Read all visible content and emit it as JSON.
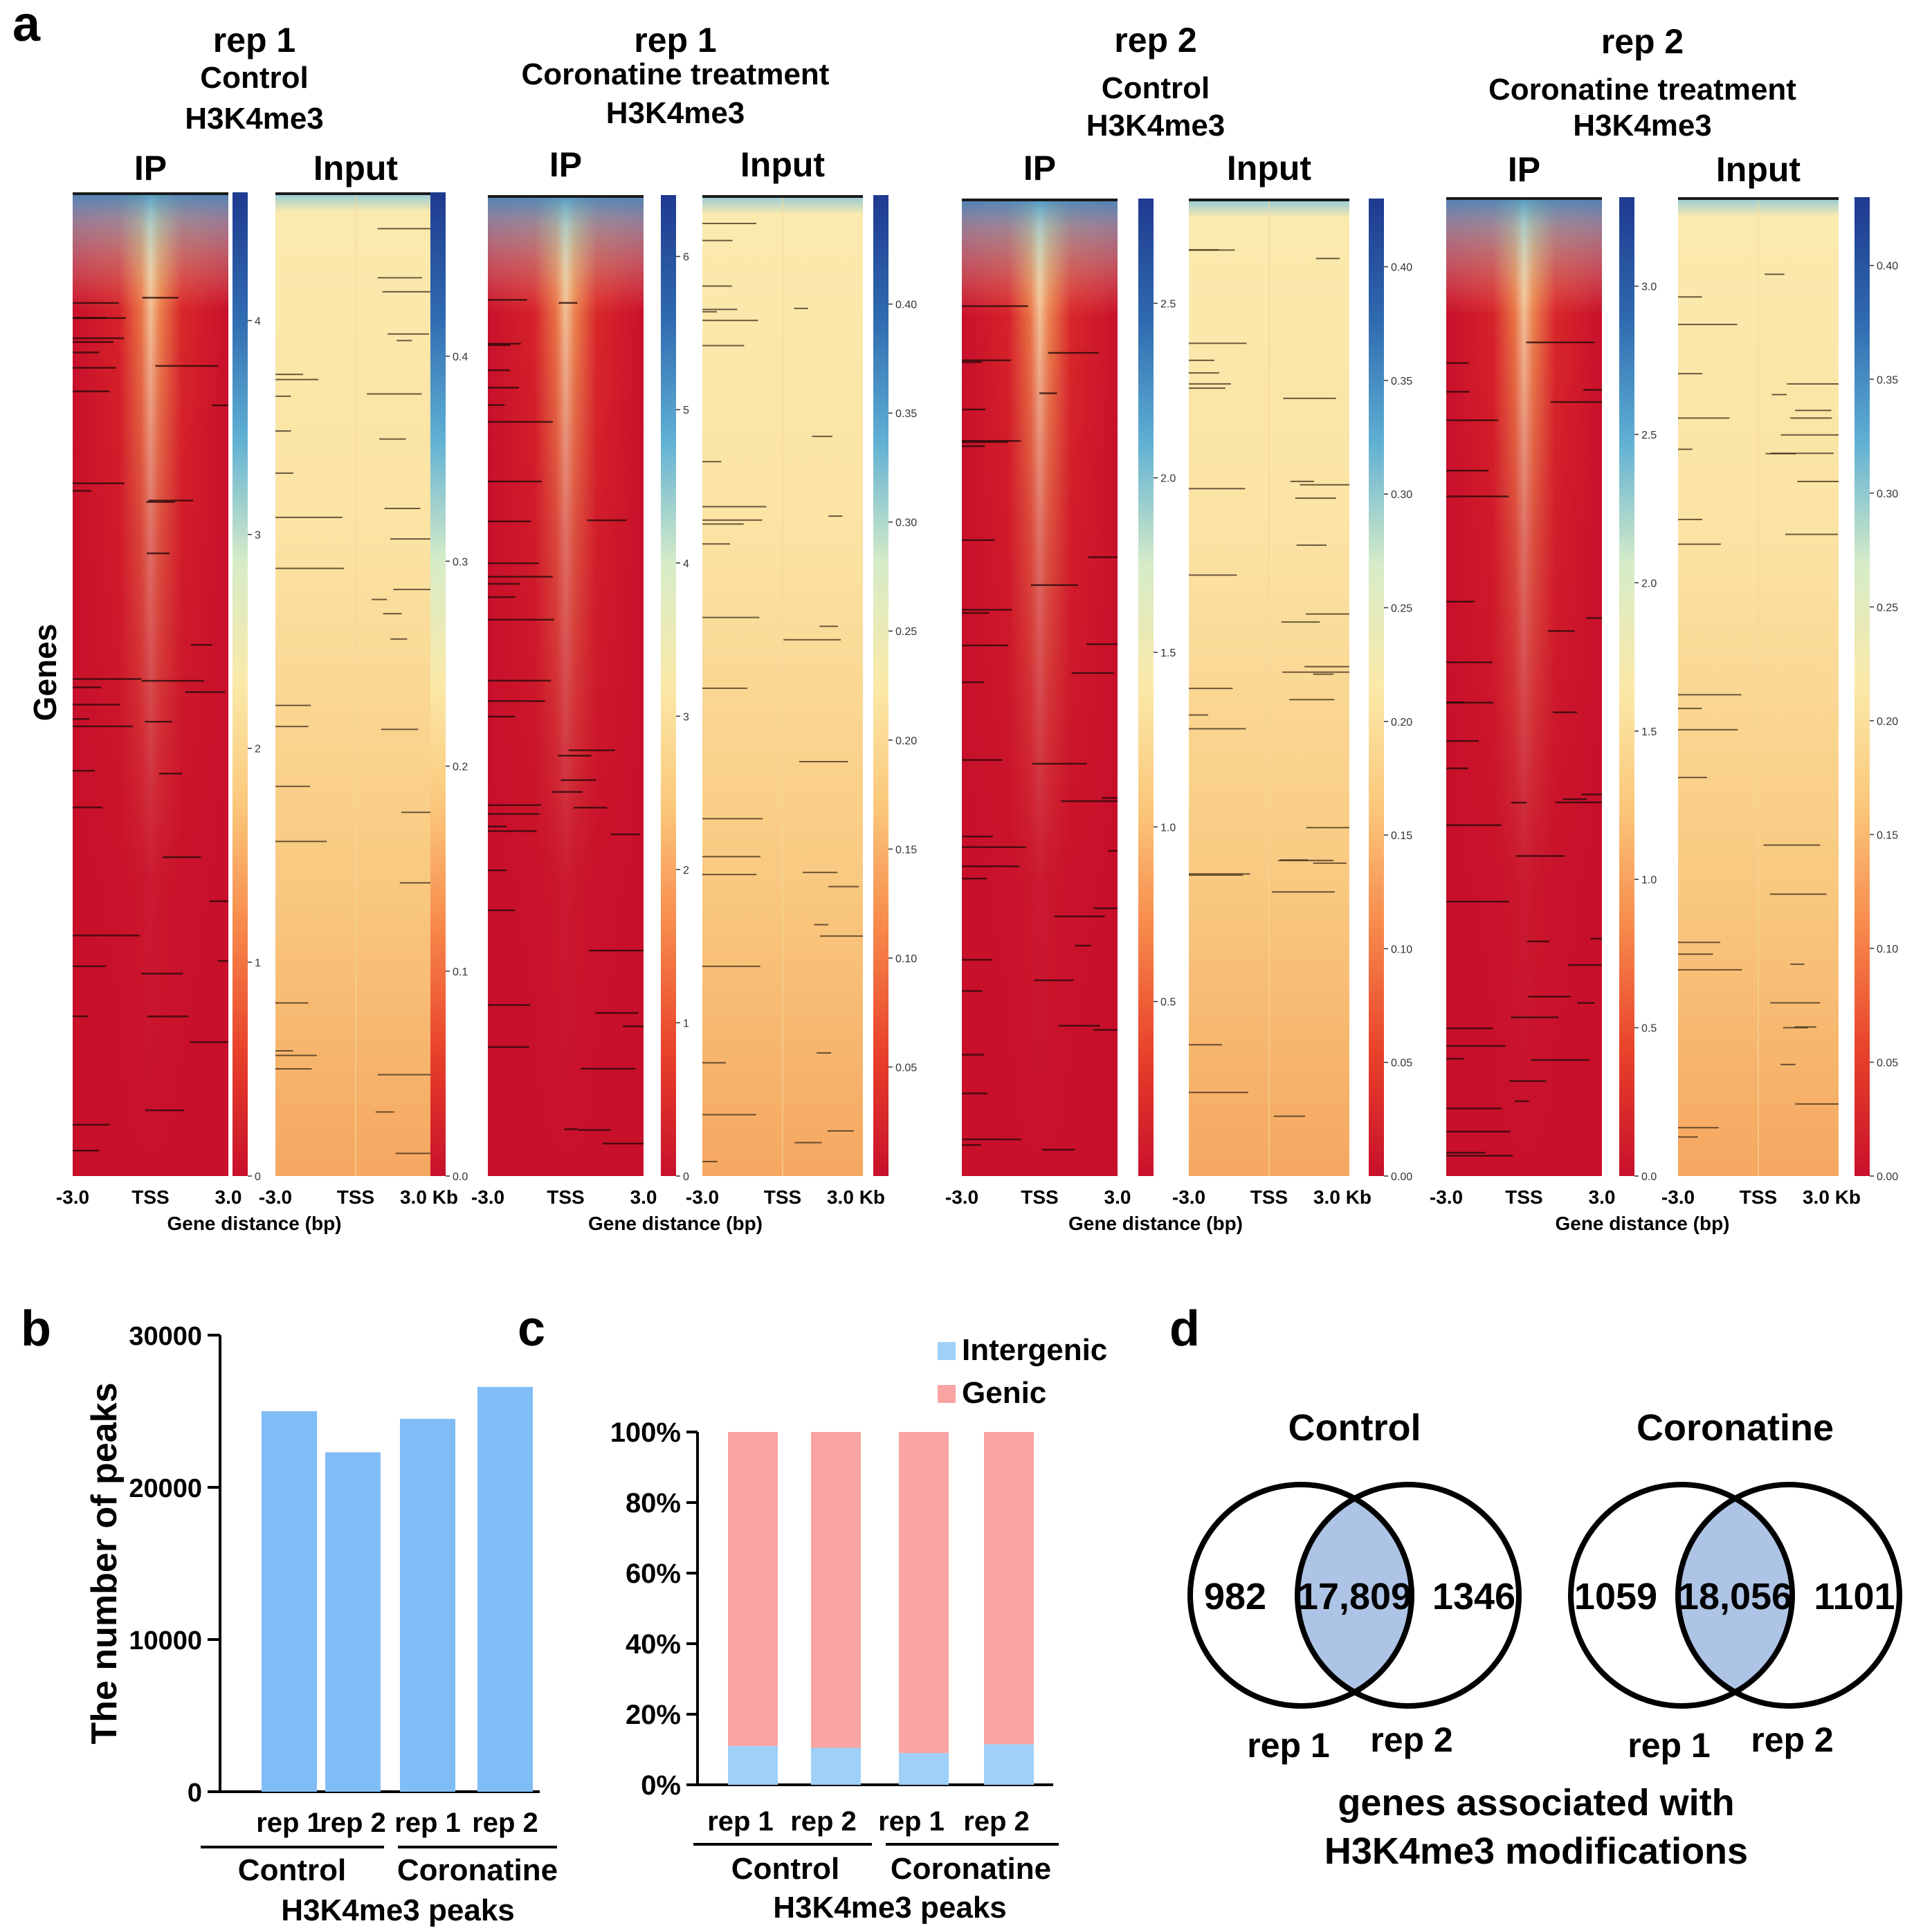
{
  "panel_labels": {
    "a": "a",
    "b": "b",
    "c": "c",
    "d": "d"
  },
  "heatmap_panel": {
    "y_label": "Genes",
    "x_axis_title": "Gene distance (bp)",
    "x_ticks_ip": [
      "-3.0",
      "TSS",
      "3.0"
    ],
    "x_ticks_input": [
      "-3.0",
      "TSS",
      "3.0 Kb"
    ],
    "col_ip": "IP",
    "col_input": "Input",
    "colormap": [
      "#c8102b",
      "#e8412a",
      "#f7874a",
      "#fbc77a",
      "#fbe9a8",
      "#d6ecc8",
      "#5fb0d4",
      "#2f6ab0",
      "#1f3a8f"
    ],
    "groups": [
      {
        "rep": "rep 1",
        "condition": "Control",
        "mark": "H3K4me3",
        "ip_scale": {
          "ticks": [
            "0",
            "1",
            "2",
            "3",
            "4"
          ],
          "max": 4.6
        },
        "input_scale": {
          "ticks": [
            "0.0",
            "0.1",
            "0.2",
            "0.3",
            "0.4"
          ],
          "max": 0.48
        }
      },
      {
        "rep": "rep 1",
        "condition": "Coronatine treatment",
        "mark": "H3K4me3",
        "ip_scale": {
          "ticks": [
            "0",
            "1",
            "2",
            "3",
            "4",
            "5",
            "6"
          ],
          "max": 6.4
        },
        "input_scale": {
          "ticks": [
            "0.05",
            "0.10",
            "0.15",
            "0.20",
            "0.25",
            "0.30",
            "0.35",
            "0.40"
          ],
          "max": 0.45
        }
      },
      {
        "rep": "rep 2",
        "condition": "Control",
        "mark": "H3K4me3",
        "ip_scale": {
          "ticks": [
            "0.5",
            "1.0",
            "1.5",
            "2.0",
            "2.5"
          ],
          "max": 2.8
        },
        "input_scale": {
          "ticks": [
            "0.00",
            "0.05",
            "0.10",
            "0.15",
            "0.20",
            "0.25",
            "0.30",
            "0.35",
            "0.40"
          ],
          "max": 0.43
        }
      },
      {
        "rep": "rep 2",
        "condition": "Coronatine treatment",
        "mark": "H3K4me3",
        "ip_scale": {
          "ticks": [
            "0.0",
            "0.5",
            "1.0",
            "1.5",
            "2.0",
            "2.5",
            "3.0"
          ],
          "max": 3.3
        },
        "input_scale": {
          "ticks": [
            "0.00",
            "0.05",
            "0.10",
            "0.15",
            "0.20",
            "0.25",
            "0.30",
            "0.35",
            "0.40"
          ],
          "max": 0.43
        }
      }
    ]
  },
  "chart_data": [
    {
      "type": "bar",
      "panel": "b",
      "ylabel": "The number of peaks",
      "categories": [
        "rep 1",
        "rep 2",
        "rep 1",
        "rep 2"
      ],
      "groups": [
        "Control",
        "Coronatine"
      ],
      "xlabel": "H3K4me3 peaks",
      "values": [
        25000,
        22300,
        24500,
        26600
      ],
      "ylim": [
        0,
        30000
      ],
      "yticks": [
        "0",
        "10000",
        "20000",
        "30000"
      ],
      "color": "#80bdf7"
    },
    {
      "type": "bar",
      "stacked": true,
      "panel": "c",
      "categories": [
        "rep 1",
        "rep 2",
        "rep 1",
        "rep 2"
      ],
      "groups": [
        "Control",
        "Coronatine"
      ],
      "xlabel": "H3K4me3 peaks",
      "yticks": [
        "0%",
        "20%",
        "40%",
        "60%",
        "80%",
        "100%"
      ],
      "ylim": [
        0,
        100
      ],
      "series": [
        {
          "name": "Intergenic",
          "values": [
            11,
            10.5,
            9,
            11.5
          ],
          "color": "#9fd0f8"
        },
        {
          "name": "Genic",
          "values": [
            89,
            89.5,
            91,
            88.5
          ],
          "color": "#f9a3a3"
        }
      ],
      "legend": "top-right"
    }
  ],
  "venn": {
    "diagrams": [
      {
        "title": "Control",
        "left": "982",
        "overlap": "17,809",
        "right": "1346",
        "label_left": "rep 1",
        "label_right": "rep 2"
      },
      {
        "title": "Coronatine",
        "left": "1059",
        "overlap": "18,056",
        "right": "1101",
        "label_left": "rep 1",
        "label_right": "rep 2"
      }
    ],
    "caption_line1": "genes associated with",
    "caption_line2": "H3K4me3 modifications",
    "overlap_color": "#aec4e6"
  }
}
